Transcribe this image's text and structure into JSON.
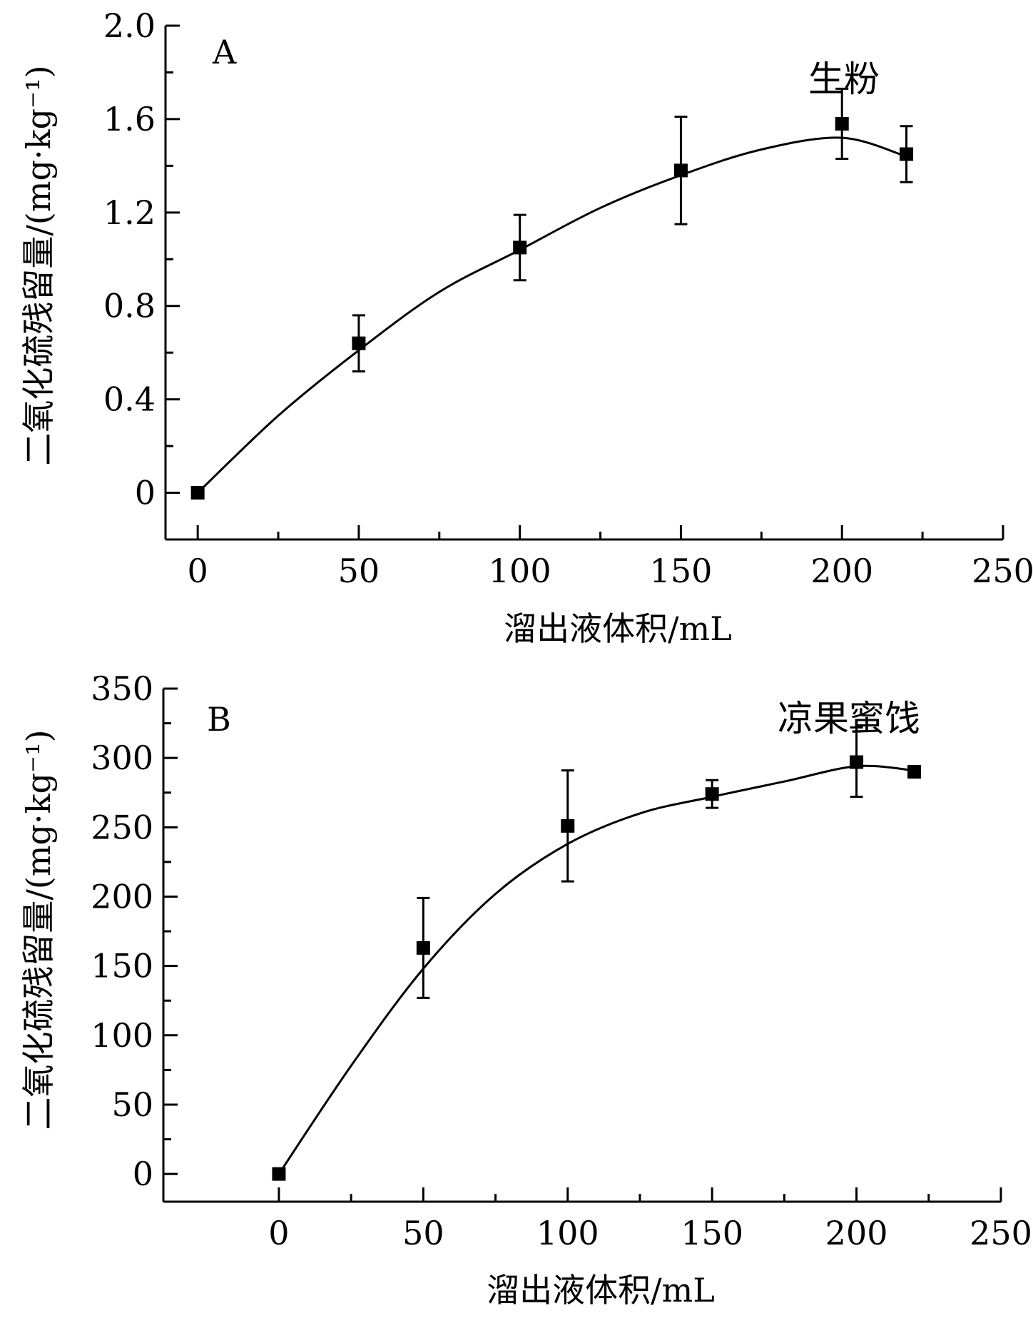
{
  "colors": {
    "ink": "#000000",
    "background": "#ffffff"
  },
  "chart_data": [
    {
      "type": "line",
      "panel_label": "A",
      "annotation": "生粉",
      "xlabel": "溜出液体积/mL",
      "ylabel": "二氧化硫残留量/(mg·kg⁻¹)",
      "xlim": [
        -10,
        250
      ],
      "ylim": [
        -0.2,
        2.0
      ],
      "xticks": [
        0,
        50,
        100,
        150,
        200,
        250
      ],
      "yticks": [
        0,
        0.4,
        0.8,
        1.2,
        1.6,
        2.0
      ],
      "ytick_labels": [
        "0",
        "0.4",
        "0.8",
        "1.2",
        "1.6",
        "2.0"
      ],
      "minor_yticks": [
        0.2,
        0.6,
        1.0,
        1.4,
        1.8
      ],
      "marker": "square",
      "x": [
        0,
        50,
        100,
        150,
        200,
        220
      ],
      "y": [
        0,
        0.64,
        1.05,
        1.38,
        1.58,
        1.45
      ],
      "error": [
        0,
        0.12,
        0.14,
        0.23,
        0.15,
        0.12
      ],
      "fit_x": [
        0,
        25,
        50,
        75,
        100,
        125,
        150,
        175,
        200,
        220
      ],
      "fit_y": [
        0,
        0.33,
        0.61,
        0.86,
        1.04,
        1.22,
        1.36,
        1.47,
        1.52,
        1.44
      ]
    },
    {
      "type": "line",
      "panel_label": "B",
      "annotation": "凉果蜜饯",
      "xlabel": "溜出液体积/mL",
      "ylabel": "二氧化硫残留量/(mg·kg⁻¹)",
      "xlim": [
        -40,
        250
      ],
      "ylim": [
        -20,
        350
      ],
      "xticks": [
        0,
        50,
        100,
        150,
        200,
        250
      ],
      "yticks": [
        0,
        50,
        100,
        150,
        200,
        250,
        300,
        350
      ],
      "ytick_labels": [
        "0",
        "50",
        "100",
        "150",
        "200",
        "250",
        "300",
        "350"
      ],
      "minor_yticks": [
        25,
        75,
        125,
        175,
        225,
        275,
        325
      ],
      "marker": "square",
      "x": [
        0,
        50,
        100,
        150,
        200,
        220
      ],
      "y": [
        0,
        163,
        251,
        274,
        297,
        290
      ],
      "error": [
        0,
        36,
        40,
        10,
        25,
        0
      ],
      "fit_x": [
        0,
        25,
        50,
        75,
        100,
        125,
        150,
        175,
        200,
        220
      ],
      "fit_y": [
        0,
        78,
        148,
        202,
        238,
        260,
        272,
        283,
        294,
        291
      ]
    }
  ]
}
